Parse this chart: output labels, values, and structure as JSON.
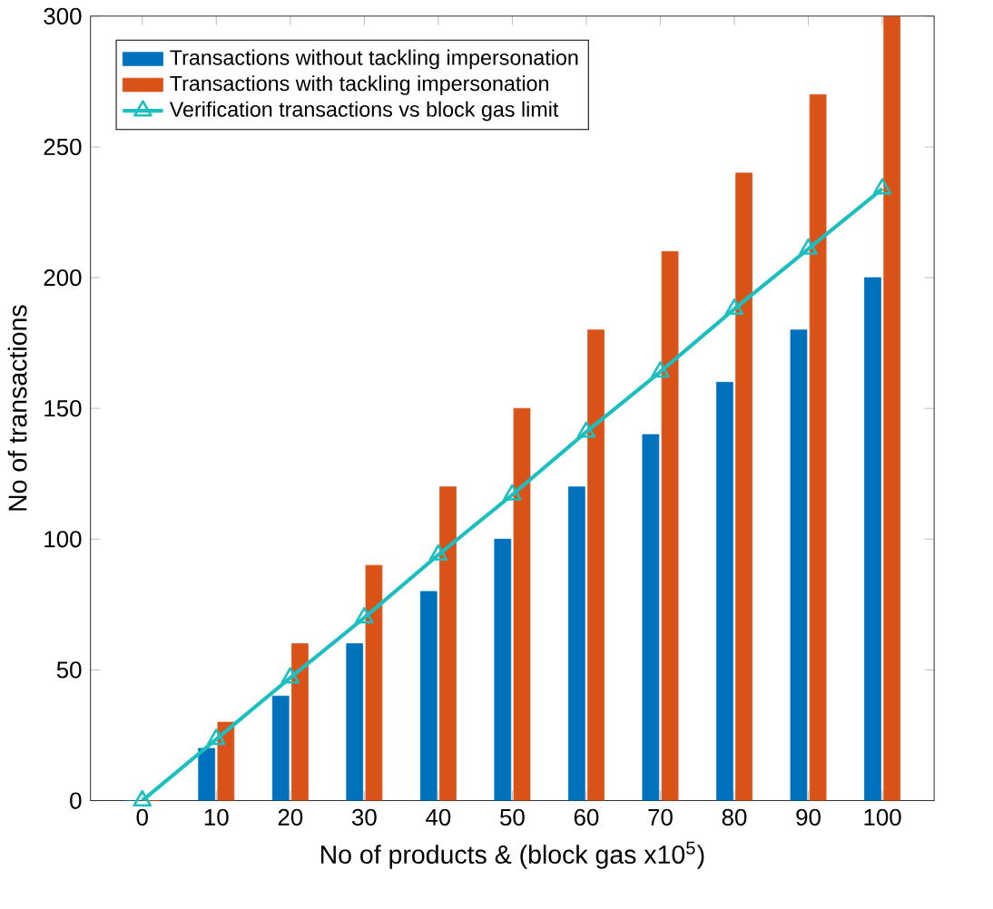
{
  "chart_data": {
    "type": "bar",
    "xlabel": "No of products & (block gas x10$^{5}$)",
    "ylabel": "No of transactions",
    "categories": [
      "0",
      "10",
      "20",
      "30",
      "40",
      "50",
      "60",
      "70",
      "80",
      "90",
      "100"
    ],
    "series": [
      {
        "name": "Transactions without tackling impersonation",
        "color": "#0072bd",
        "values": [
          0,
          20,
          40,
          60,
          80,
          100,
          120,
          140,
          160,
          180,
          200
        ]
      },
      {
        "name": "Transactions with tackling impersonation",
        "color": "#d95319",
        "values": [
          0,
          30,
          60,
          90,
          120,
          150,
          180,
          210,
          240,
          270,
          300
        ]
      },
      {
        "name": "Verification transactions vs block gas limit",
        "type": "line",
        "marker": "triangle",
        "color": "#1cbfbf",
        "values": [
          0,
          23.5,
          47,
          70,
          94,
          117,
          141,
          164,
          188,
          211,
          234
        ]
      }
    ],
    "ylim": [
      0,
      300
    ],
    "yticks": [
      0,
      50,
      100,
      150,
      200,
      250,
      300
    ],
    "legend": "top left"
  }
}
